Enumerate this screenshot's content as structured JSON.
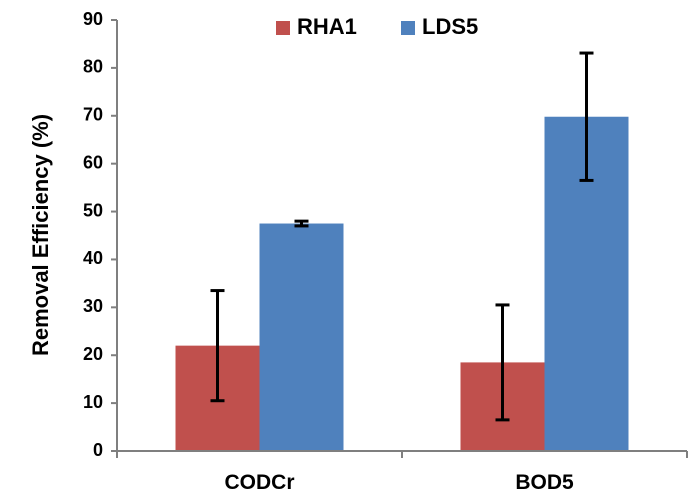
{
  "chart_data": {
    "type": "bar",
    "categories": [
      "CODCr",
      "BOD5"
    ],
    "series": [
      {
        "name": "RHA1",
        "values": [
          22,
          18.5
        ],
        "errors": [
          11.5,
          12
        ],
        "color": "#C0504D"
      },
      {
        "name": "LDS5",
        "values": [
          47.5,
          69.8
        ],
        "errors": [
          0.5,
          13.3
        ],
        "color": "#4F81BD"
      }
    ],
    "ylabel": "Removal Efficiency (%)",
    "xlabel": "",
    "ylim": [
      0,
      90
    ],
    "yticks": [
      "0",
      "10",
      "20",
      "30",
      "40",
      "50",
      "60",
      "70",
      "80",
      "90"
    ],
    "grid": false,
    "legend_position": "top"
  }
}
